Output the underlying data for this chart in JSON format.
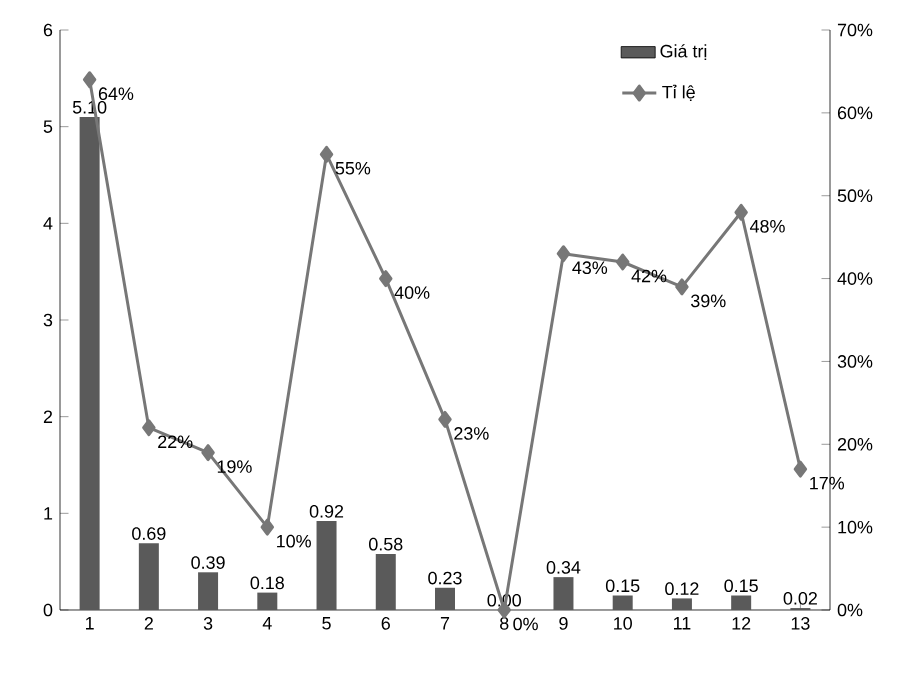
{
  "chart_data": {
    "type": "bar",
    "categories": [
      "1",
      "2",
      "3",
      "4",
      "5",
      "6",
      "7",
      "8",
      "9",
      "10",
      "11",
      "12",
      "13"
    ],
    "series": [
      {
        "name": "Giá trị",
        "color": "#5a5a5a",
        "values": [
          5.1,
          0.69,
          0.39,
          0.18,
          0.92,
          0.58,
          0.23,
          0.0,
          0.34,
          0.15,
          0.12,
          0.15,
          0.02
        ],
        "value_labels": [
          "5.10",
          "0.69",
          "0.39",
          "0.18",
          "0.92",
          "0.58",
          "0.23",
          "0.00",
          "0.34",
          "0.15",
          "0.12",
          "0.15",
          "0.02"
        ]
      },
      {
        "name": "Tỉ lệ",
        "type": "line",
        "axis": "y2",
        "color": "#777777",
        "marker": "diamond",
        "values": [
          64,
          22,
          19,
          10,
          55,
          40,
          23,
          0,
          43,
          42,
          39,
          48,
          17
        ],
        "value_labels": [
          "64%",
          "22%",
          "19%",
          "10%",
          "55%",
          "40%",
          "23%",
          "0%",
          "43%",
          "42%",
          "39%",
          "48%",
          "17%"
        ]
      }
    ],
    "ylim": [
      0,
      6
    ],
    "yticks": [
      0,
      1,
      2,
      3,
      4,
      5,
      6
    ],
    "y2lim": [
      0,
      70
    ],
    "y2ticks": [
      {
        "value": 0,
        "label": "0%"
      },
      {
        "value": 10,
        "label": "10%"
      },
      {
        "value": 20,
        "label": "20%"
      },
      {
        "value": 30,
        "label": "30%"
      },
      {
        "value": 40,
        "label": "40%"
      },
      {
        "value": 50,
        "label": "50%"
      },
      {
        "value": 60,
        "label": "60%"
      },
      {
        "value": 70,
        "label": "70%"
      }
    ],
    "grid": false,
    "legend": "top right"
  }
}
